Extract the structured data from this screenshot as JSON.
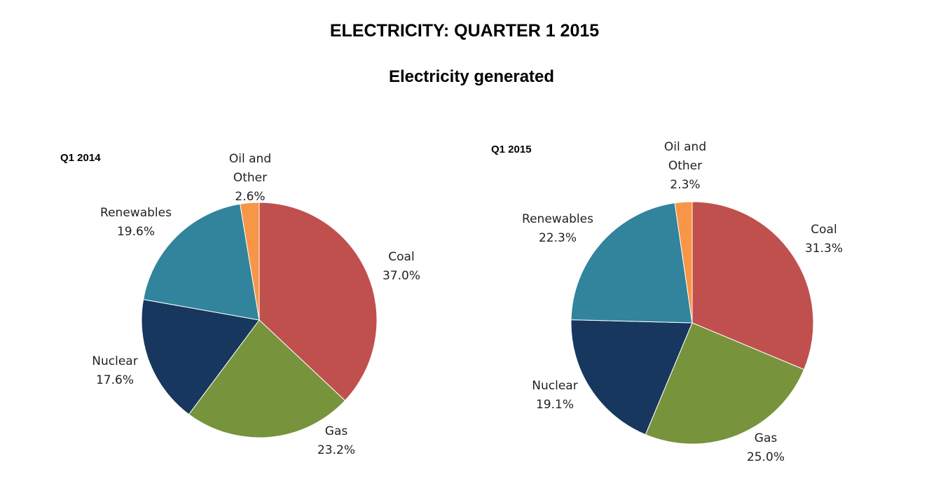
{
  "title": "ELECTRICITY: QUARTER 1 2015",
  "subtitle": "Electricity generated",
  "colors": {
    "Coal": "#c0504d",
    "Gas": "#77933c",
    "Nuclear": "#17375e",
    "Renewables": "#31849b",
    "Oil and Other": "#f79646"
  },
  "chart_data": [
    {
      "type": "pie",
      "title": "Q1 2014",
      "categories": [
        "Coal",
        "Gas",
        "Nuclear",
        "Renewables",
        "Oil and Other"
      ],
      "values": [
        37.0,
        23.2,
        17.6,
        19.6,
        2.6
      ],
      "value_labels": [
        "37.0%",
        "23.2%",
        "17.6%",
        "19.6%",
        "2.6%"
      ],
      "label_lines": [
        [
          "Coal"
        ],
        [
          "Gas"
        ],
        [
          "Nuclear"
        ],
        [
          "Renewables"
        ],
        [
          "Oil and",
          "Other"
        ]
      ]
    },
    {
      "type": "pie",
      "title": "Q1 2015",
      "categories": [
        "Coal",
        "Gas",
        "Nuclear",
        "Renewables",
        "Oil and Other"
      ],
      "values": [
        31.3,
        25.0,
        19.1,
        22.3,
        2.3
      ],
      "value_labels": [
        "31.3%",
        "25.0%",
        "19.1%",
        "22.3%",
        "2.3%"
      ],
      "label_lines": [
        [
          "Coal"
        ],
        [
          "Gas"
        ],
        [
          "Nuclear"
        ],
        [
          "Renewables"
        ],
        [
          "Oil and",
          "Other"
        ]
      ]
    }
  ]
}
